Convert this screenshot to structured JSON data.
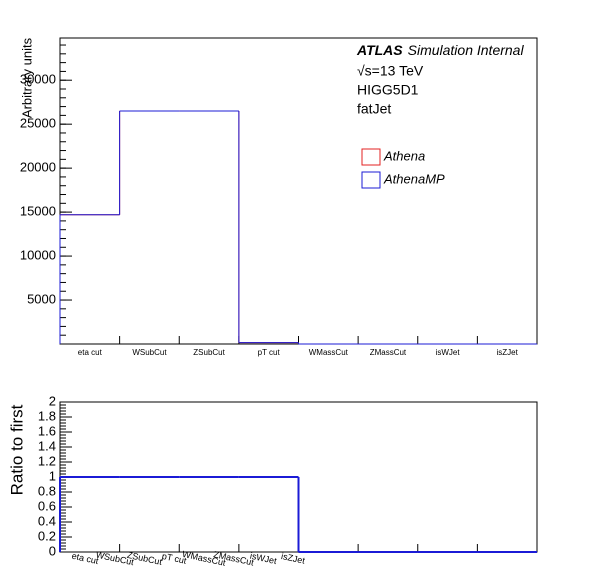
{
  "chart_data": [
    {
      "type": "step",
      "y_label": "Arbitrary units",
      "annotations": [
        "ATLAS",
        "Simulation Internal",
        "√s=13 TeV",
        "HIGG5D1",
        "fatJet"
      ],
      "categories": [
        "eta cut",
        "WSubCut",
        "ZSubCut",
        "pT cut",
        "WMassCut",
        "ZMassCut",
        "isWJet",
        "isZJet"
      ],
      "series": [
        {
          "name": "Athena",
          "color": "#e32222",
          "values": [
            14700,
            26500,
            26500,
            150,
            0,
            0,
            0,
            0
          ]
        },
        {
          "name": "AthenaMP",
          "color": "#1b1bd6",
          "values": [
            14700,
            26500,
            26500,
            150,
            0,
            0,
            0,
            0
          ]
        }
      ],
      "ylim": [
        0,
        34800
      ],
      "yticks": [
        5000,
        10000,
        15000,
        20000,
        25000,
        30000
      ],
      "legend": "upper right"
    },
    {
      "type": "step",
      "y_label": "Ratio to first",
      "categories": [
        "eta cut",
        "WSubCut",
        "ZSubCut",
        "pT cut",
        "WMassCut",
        "ZMassCut",
        "isWJet",
        "isZJet"
      ],
      "series": [
        {
          "name": "AthenaMP",
          "color": "#1b1bd6",
          "values": [
            1,
            1,
            1,
            1,
            0,
            0,
            0,
            0
          ]
        }
      ],
      "ylim": [
        0,
        2
      ],
      "yticks": [
        0,
        0.2,
        0.4,
        0.6,
        0.8,
        1,
        1.2,
        1.4,
        1.6,
        1.8,
        2
      ]
    }
  ]
}
